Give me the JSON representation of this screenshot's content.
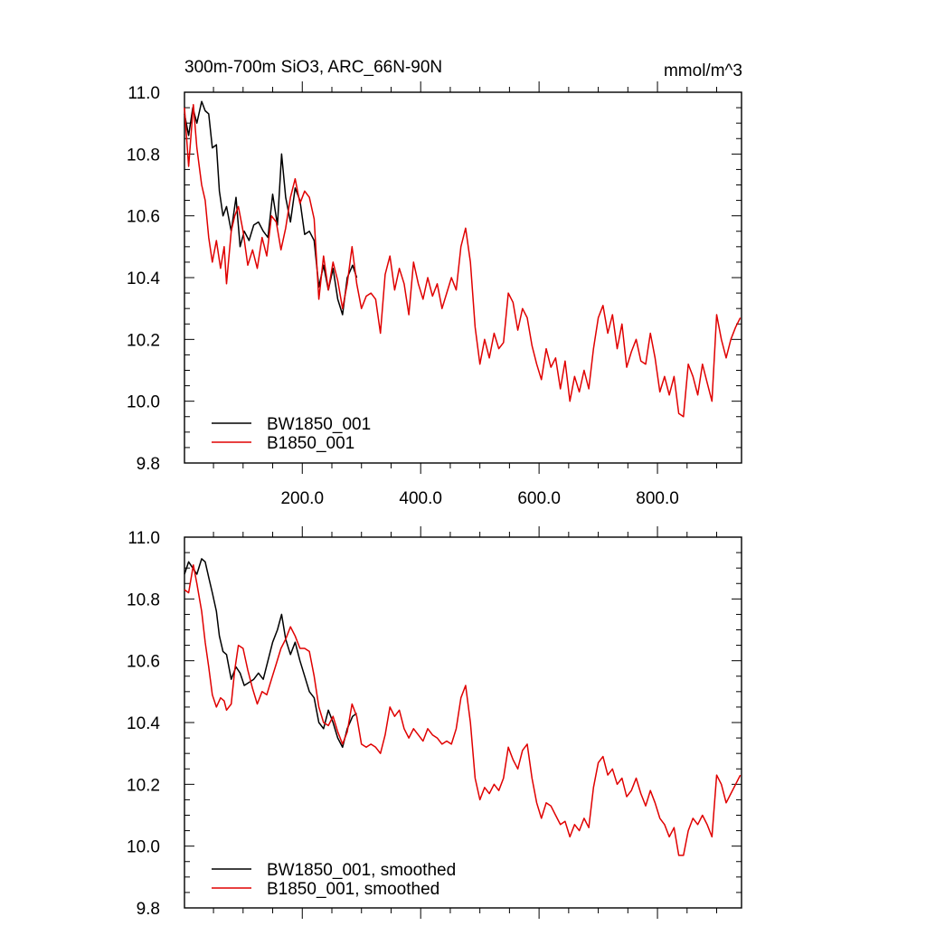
{
  "header": {
    "title": "300m-700m SiO3, ARC_66N-90N",
    "units": "mmol/m^3"
  },
  "colors": {
    "BW1850_001": "#000000",
    "B1850_001": "#e00000",
    "axis": "#000000"
  },
  "chart_data": [
    {
      "type": "line",
      "title": "300m-700m SiO3, ARC_66N-90N",
      "units": "mmol/m^3",
      "xlim": [
        1,
        942
      ],
      "ylim": [
        9.8,
        11.0
      ],
      "xticks": [
        200,
        400,
        600,
        800
      ],
      "xtick_labels": [
        "200.0",
        "400.0",
        "600.0",
        "800.0"
      ],
      "yticks": [
        9.8,
        10.0,
        10.2,
        10.4,
        10.6,
        10.8,
        11.0
      ],
      "ytick_labels": [
        "9.8",
        "10.0",
        "10.2",
        "10.4",
        "10.6",
        "10.8",
        "11.0"
      ],
      "legend": "bottom-left",
      "grid": false,
      "series": [
        {
          "name": "BW1850_001",
          "color": "#000000",
          "x": [
            1,
            8,
            15,
            22,
            30,
            36,
            42,
            48,
            55,
            60,
            66,
            72,
            80,
            88,
            95,
            102,
            110,
            118,
            126,
            134,
            142,
            150,
            158,
            165,
            172,
            180,
            188,
            196,
            204,
            212,
            220,
            228,
            236,
            244,
            252,
            260,
            268,
            276,
            285,
            292
          ],
          "y": [
            10.93,
            10.86,
            10.95,
            10.9,
            10.97,
            10.94,
            10.93,
            10.82,
            10.83,
            10.68,
            10.6,
            10.63,
            10.55,
            10.66,
            10.5,
            10.55,
            10.52,
            10.57,
            10.58,
            10.55,
            10.53,
            10.67,
            10.57,
            10.8,
            10.66,
            10.58,
            10.69,
            10.65,
            10.54,
            10.55,
            10.52,
            10.37,
            10.44,
            10.36,
            10.43,
            10.33,
            10.28,
            10.4,
            10.44,
            10.4
          ]
        },
        {
          "name": "B1850_001",
          "color": "#e00000",
          "x": [
            1,
            8,
            16,
            22,
            30,
            36,
            42,
            48,
            55,
            62,
            68,
            72,
            80,
            86,
            92,
            100,
            108,
            116,
            124,
            132,
            140,
            148,
            156,
            164,
            172,
            180,
            188,
            196,
            204,
            212,
            220,
            228,
            236,
            244,
            252,
            260,
            268,
            276,
            284,
            292,
            300,
            308,
            316,
            324,
            332,
            340,
            348,
            356,
            364,
            372,
            380,
            388,
            396,
            404,
            412,
            420,
            428,
            436,
            444,
            452,
            460,
            468,
            476,
            484,
            492,
            500,
            508,
            516,
            524,
            532,
            540,
            548,
            556,
            564,
            572,
            580,
            588,
            596,
            604,
            612,
            620,
            628,
            636,
            644,
            652,
            660,
            668,
            676,
            684,
            692,
            700,
            708,
            716,
            724,
            732,
            740,
            748,
            756,
            764,
            772,
            780,
            788,
            796,
            804,
            812,
            820,
            828,
            836,
            844,
            852,
            860,
            868,
            876,
            884,
            892,
            900,
            908,
            916,
            924,
            932,
            940
          ],
          "y": [
            10.95,
            10.76,
            10.96,
            10.82,
            10.7,
            10.65,
            10.53,
            10.45,
            10.52,
            10.43,
            10.5,
            10.38,
            10.55,
            10.6,
            10.63,
            10.55,
            10.44,
            10.49,
            10.43,
            10.53,
            10.47,
            10.6,
            10.58,
            10.49,
            10.56,
            10.66,
            10.72,
            10.64,
            10.68,
            10.66,
            10.59,
            10.33,
            10.47,
            10.36,
            10.45,
            10.39,
            10.3,
            10.38,
            10.5,
            10.38,
            10.3,
            10.34,
            10.35,
            10.33,
            10.22,
            10.41,
            10.47,
            10.36,
            10.43,
            10.38,
            10.28,
            10.45,
            10.38,
            10.33,
            10.4,
            10.34,
            10.38,
            10.3,
            10.35,
            10.4,
            10.36,
            10.5,
            10.56,
            10.45,
            10.24,
            10.12,
            10.2,
            10.14,
            10.22,
            10.17,
            10.19,
            10.35,
            10.32,
            10.23,
            10.3,
            10.27,
            10.18,
            10.12,
            10.07,
            10.17,
            10.11,
            10.14,
            10.04,
            10.13,
            10.0,
            10.08,
            10.03,
            10.1,
            10.04,
            10.17,
            10.27,
            10.31,
            10.22,
            10.28,
            10.17,
            10.25,
            10.11,
            10.16,
            10.2,
            10.13,
            10.12,
            10.22,
            10.14,
            10.03,
            10.08,
            10.02,
            10.08,
            9.96,
            9.95,
            10.12,
            10.08,
            10.02,
            10.12,
            10.06,
            10.0,
            10.28,
            10.2,
            10.14,
            10.2,
            10.24,
            10.27
          ]
        }
      ]
    },
    {
      "type": "line",
      "title": "",
      "xlim": [
        1,
        942
      ],
      "ylim": [
        9.8,
        11.0
      ],
      "yticks": [
        9.8,
        10.0,
        10.2,
        10.4,
        10.6,
        10.8,
        11.0
      ],
      "ytick_labels": [
        "9.8",
        "10.0",
        "10.2",
        "10.4",
        "10.6",
        "10.8",
        "11.0"
      ],
      "legend": "bottom-left",
      "grid": false,
      "series": [
        {
          "name": "BW1850_001, smoothed",
          "color": "#000000",
          "x": [
            1,
            8,
            15,
            22,
            30,
            36,
            42,
            48,
            55,
            60,
            66,
            72,
            80,
            88,
            95,
            102,
            110,
            118,
            126,
            134,
            142,
            150,
            158,
            165,
            172,
            180,
            188,
            196,
            204,
            212,
            220,
            228,
            236,
            244,
            252,
            260,
            268,
            276,
            285,
            292
          ],
          "y": [
            10.88,
            10.92,
            10.9,
            10.88,
            10.93,
            10.92,
            10.87,
            10.82,
            10.76,
            10.68,
            10.63,
            10.62,
            10.54,
            10.58,
            10.56,
            10.52,
            10.53,
            10.54,
            10.56,
            10.54,
            10.6,
            10.66,
            10.7,
            10.75,
            10.67,
            10.62,
            10.66,
            10.6,
            10.55,
            10.5,
            10.48,
            10.4,
            10.38,
            10.44,
            10.4,
            10.35,
            10.32,
            10.38,
            10.42,
            10.43
          ]
        },
        {
          "name": "B1850_001, smoothed",
          "color": "#e00000",
          "x": [
            1,
            8,
            16,
            22,
            30,
            36,
            42,
            48,
            55,
            62,
            68,
            72,
            80,
            86,
            92,
            100,
            108,
            116,
            124,
            132,
            140,
            148,
            156,
            164,
            172,
            180,
            188,
            196,
            204,
            212,
            220,
            228,
            236,
            244,
            252,
            260,
            268,
            276,
            284,
            292,
            300,
            308,
            316,
            324,
            332,
            340,
            348,
            356,
            364,
            372,
            380,
            388,
            396,
            404,
            412,
            420,
            428,
            436,
            444,
            452,
            460,
            468,
            476,
            484,
            492,
            500,
            508,
            516,
            524,
            532,
            540,
            548,
            556,
            564,
            572,
            580,
            588,
            596,
            604,
            612,
            620,
            628,
            636,
            644,
            652,
            660,
            668,
            676,
            684,
            692,
            700,
            708,
            716,
            724,
            732,
            740,
            748,
            756,
            764,
            772,
            780,
            788,
            796,
            804,
            812,
            820,
            828,
            836,
            844,
            852,
            860,
            868,
            876,
            884,
            892,
            900,
            908,
            916,
            924,
            932,
            940
          ],
          "y": [
            10.83,
            10.82,
            10.91,
            10.85,
            10.76,
            10.66,
            10.58,
            10.49,
            10.45,
            10.48,
            10.47,
            10.44,
            10.46,
            10.57,
            10.65,
            10.64,
            10.57,
            10.51,
            10.46,
            10.5,
            10.49,
            10.54,
            10.59,
            10.64,
            10.67,
            10.71,
            10.68,
            10.64,
            10.64,
            10.63,
            10.55,
            10.45,
            10.4,
            10.39,
            10.42,
            10.37,
            10.33,
            10.37,
            10.46,
            10.42,
            10.33,
            10.32,
            10.33,
            10.32,
            10.3,
            10.36,
            10.45,
            10.42,
            10.44,
            10.38,
            10.35,
            10.38,
            10.36,
            10.34,
            10.38,
            10.36,
            10.35,
            10.33,
            10.34,
            10.33,
            10.38,
            10.48,
            10.52,
            10.4,
            10.22,
            10.15,
            10.19,
            10.17,
            10.2,
            10.18,
            10.22,
            10.32,
            10.28,
            10.25,
            10.31,
            10.33,
            10.22,
            10.14,
            10.09,
            10.14,
            10.13,
            10.1,
            10.07,
            10.08,
            10.03,
            10.07,
            10.05,
            10.09,
            10.06,
            10.19,
            10.27,
            10.29,
            10.23,
            10.25,
            10.2,
            10.22,
            10.16,
            10.18,
            10.22,
            10.17,
            10.13,
            10.18,
            10.14,
            10.09,
            10.07,
            10.03,
            10.06,
            9.97,
            9.97,
            10.05,
            10.09,
            10.07,
            10.1,
            10.07,
            10.03,
            10.23,
            10.2,
            10.14,
            10.17,
            10.2,
            10.23
          ]
        }
      ]
    }
  ]
}
